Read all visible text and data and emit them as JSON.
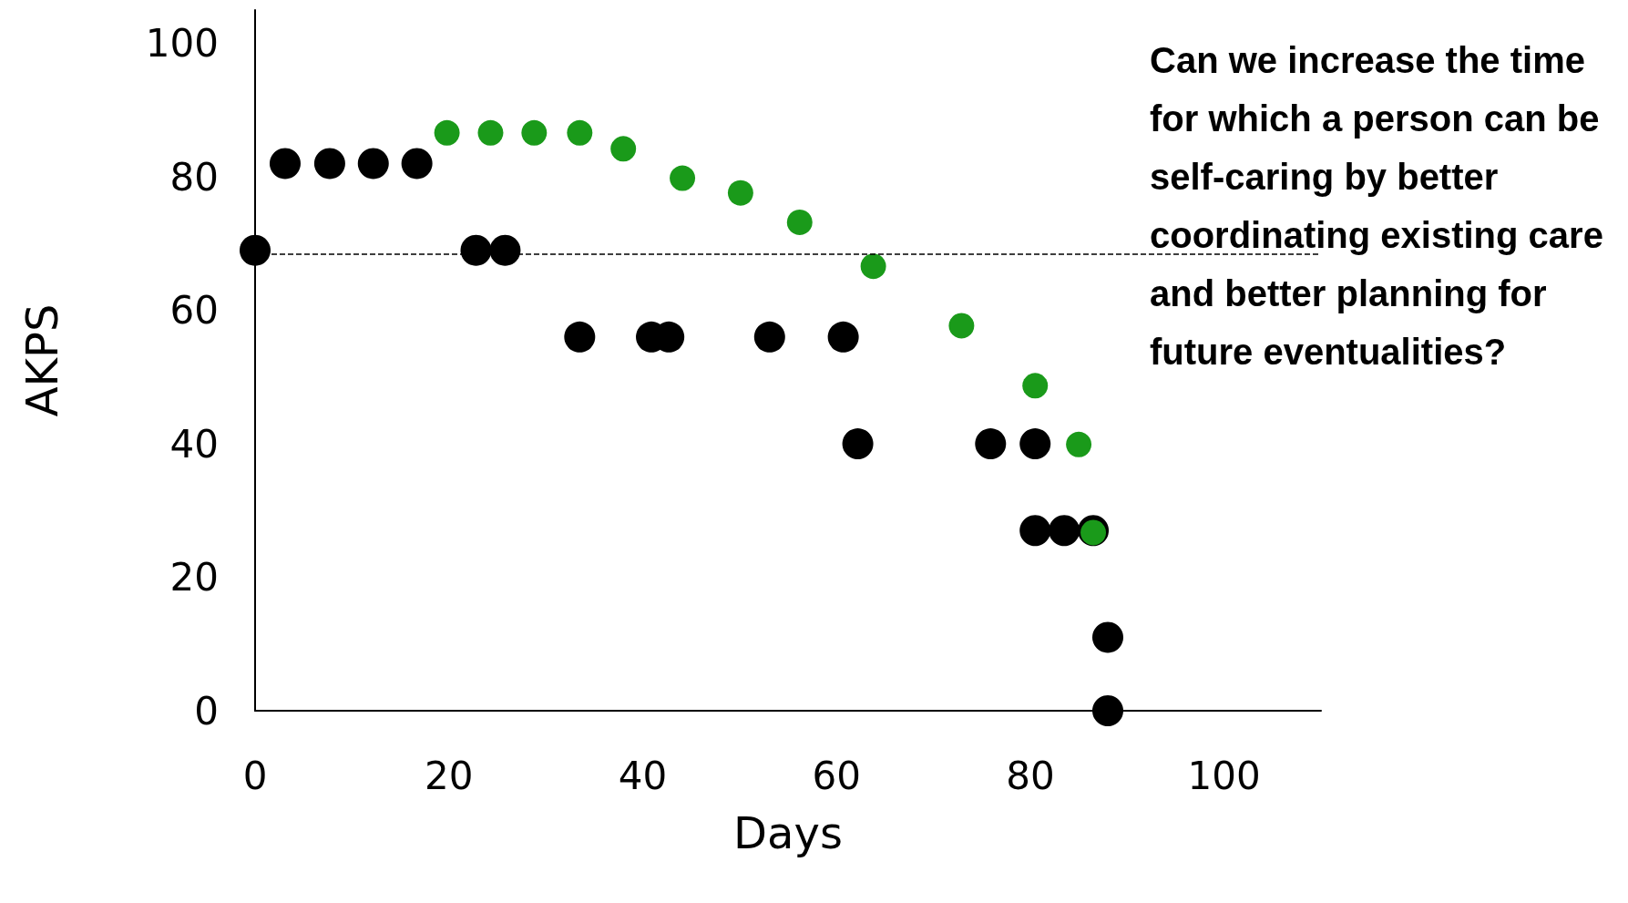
{
  "chart_data": {
    "type": "scatter",
    "xlabel": "Days",
    "ylabel": "AKPS",
    "xlim": [
      0,
      110
    ],
    "ylim": [
      0,
      105
    ],
    "xticks": [
      0,
      20,
      40,
      60,
      80,
      100
    ],
    "yticks": [
      0,
      20,
      40,
      60,
      80,
      100
    ],
    "marker": "circle",
    "grid": false,
    "series": [
      {
        "color": "#000000",
        "x": [
          0,
          3.1,
          7.7,
          12.2,
          16.7,
          22.8,
          25.8,
          33.5,
          40.9,
          42.7,
          53.1,
          60.7,
          62.2,
          75.9,
          80.5,
          80.5,
          83.5,
          86.5,
          88,
          88
        ],
        "values": [
          69,
          82,
          82,
          82,
          82,
          69,
          69,
          56,
          56,
          56,
          56,
          56,
          40,
          40,
          40,
          27,
          27,
          27,
          11,
          0
        ]
      },
      {
        "color": "#1a9a1a",
        "x": [
          19.8,
          24.3,
          28.8,
          33.5,
          38,
          44.1,
          50.1,
          56.2,
          63.8,
          72.9,
          80.5,
          85,
          86.5
        ],
        "values": [
          86.6,
          86.6,
          86.6,
          86.6,
          84.2,
          79.8,
          77.6,
          73.2,
          66.6,
          57.7,
          48.7,
          39.9,
          26.7
        ]
      }
    ],
    "ref_lines": [
      {
        "axis": "y",
        "value": 68.5,
        "line_style": "dashed",
        "color": "#000000"
      }
    ],
    "annotations": [
      "Can we increase the time for which a person can be self-caring by better coordinating existing care and better planning for future eventualities?"
    ]
  }
}
